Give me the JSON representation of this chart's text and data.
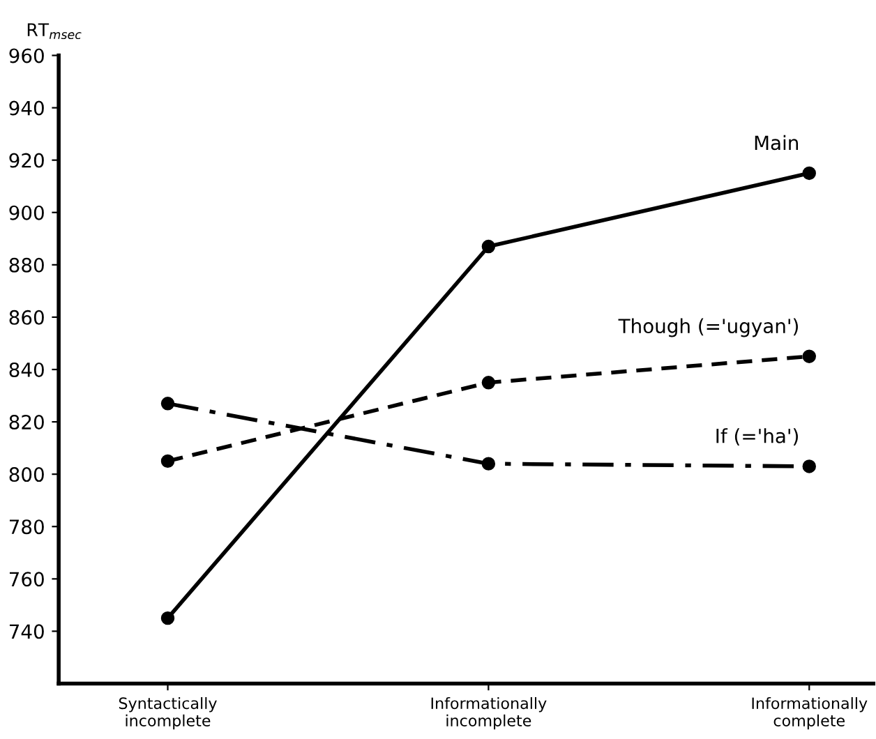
{
  "chart_data": {
    "type": "line",
    "ylabel": "RT$_{msec}$",
    "categories": [
      "Syntactically\nincomplete",
      "Informationally\nincomplete",
      "Informationally\ncomplete"
    ],
    "series": [
      {
        "name": "Main",
        "color": "#000000",
        "values": [
          745,
          887,
          915
        ],
        "line_style": "solid"
      },
      {
        "name": "Though (='ugyan')",
        "color": "#000000",
        "values": [
          805,
          835,
          845
        ],
        "line_style": "dashed"
      },
      {
        "name": "If (='ha')",
        "color": "#000000",
        "values": [
          827,
          804,
          803
        ],
        "line_style": "dashdot"
      }
    ],
    "ylim": [
      720,
      960
    ],
    "yticks": [
      740,
      760,
      780,
      800,
      820,
      840,
      860,
      880,
      900,
      920,
      940,
      960
    ],
    "marker": "circle",
    "grid": false,
    "legend": false
  }
}
